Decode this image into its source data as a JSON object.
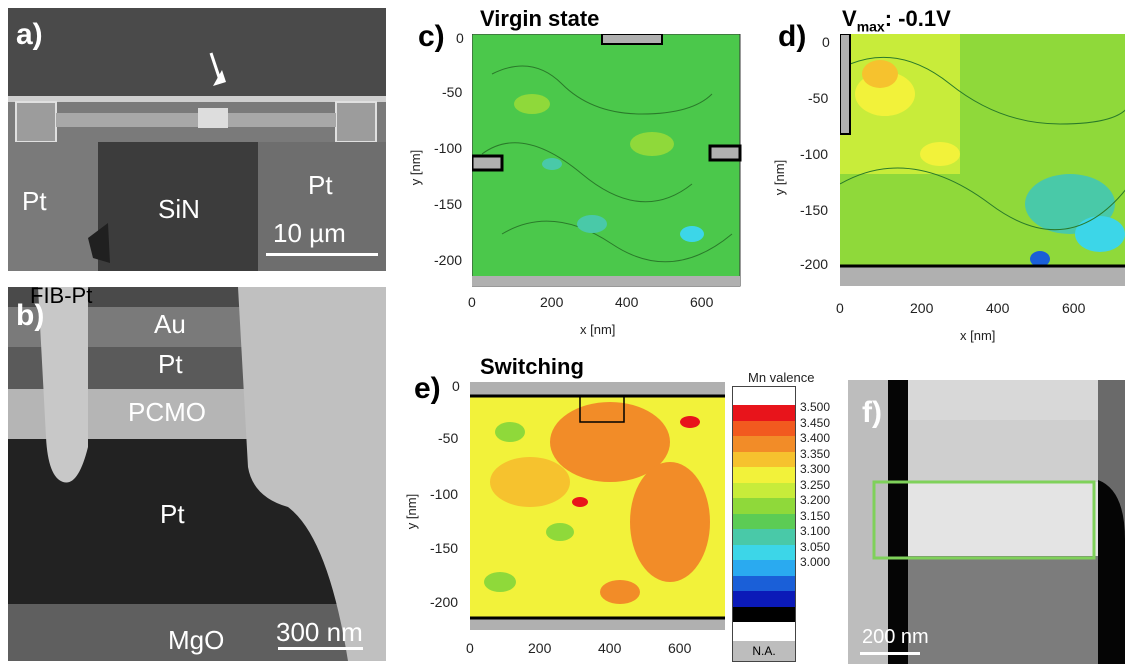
{
  "panel_a": {
    "label": "a)",
    "pt_left": "Pt",
    "sin": "SiN",
    "pt_right": "Pt",
    "scale": "10 µm"
  },
  "panel_b": {
    "label": "b)",
    "fib": "FIB-Pt",
    "au": "Au",
    "pt_top": "Pt",
    "pcmo": "PCMO",
    "pt_bottom": "Pt",
    "mgo": "MgO",
    "scale": "300 nm"
  },
  "panel_c": {
    "label": "c)",
    "title": "Virgin state"
  },
  "panel_d": {
    "label": "d)",
    "title_main": "V",
    "title_sub": "max",
    "title_rest": ": -0.1V"
  },
  "panel_e": {
    "label": "e)",
    "title": "Switching"
  },
  "panel_f": {
    "label": "f)",
    "scale": "200 nm"
  },
  "axes": {
    "xlabel": "x [nm]",
    "ylabel": "y [nm]",
    "xticks": [
      "0",
      "200",
      "400",
      "600"
    ],
    "yticks": [
      "0",
      "-50",
      "-100",
      "-150",
      "-200"
    ]
  },
  "colorbar": {
    "title": "Mn valence",
    "na": "N.A.",
    "values": [
      "3.500",
      "3.450",
      "3.400",
      "3.350",
      "3.300",
      "3.250",
      "3.200",
      "3.150",
      "3.100",
      "3.050",
      "3.000"
    ],
    "colors": [
      "#e8141b",
      "#f25a1f",
      "#f28c28",
      "#f6c22e",
      "#f2f23a",
      "#c8ec3a",
      "#8fd93a",
      "#5ccc55",
      "#49c9a8",
      "#3cd6e8",
      "#2aaaf0",
      "#1a5fd8",
      "#0b1ab8",
      "#000000"
    ]
  }
}
